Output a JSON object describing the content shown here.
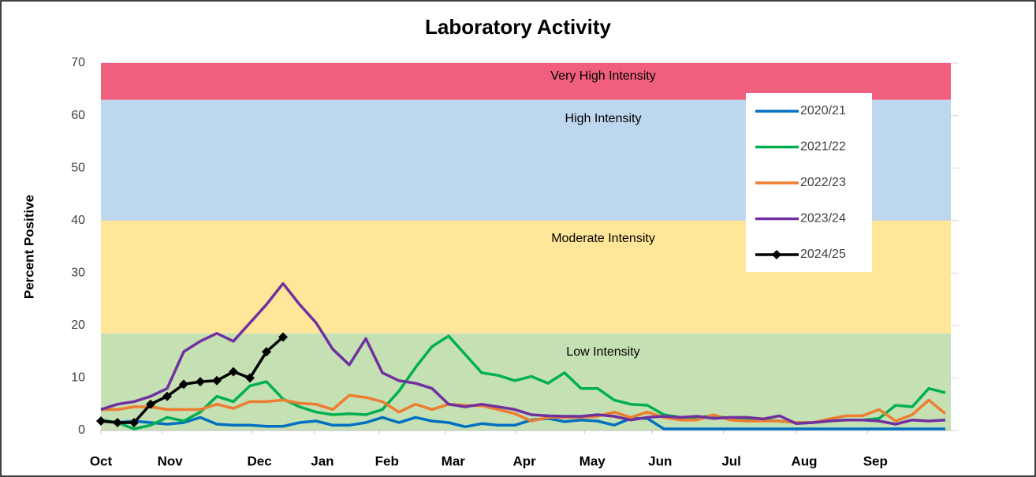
{
  "chart_data": {
    "type": "line",
    "title": "Laboratory Activity",
    "y_label": "Percent Positive",
    "xlim": [
      0,
      51
    ],
    "x": [
      0,
      1,
      2,
      3,
      4,
      5,
      6,
      7,
      8,
      9,
      10,
      11,
      12,
      13,
      14,
      15,
      16,
      17,
      18,
      19,
      20,
      21,
      22,
      23,
      24,
      25,
      26,
      27,
      28,
      29,
      30,
      31,
      32,
      33,
      34,
      35,
      36,
      37,
      38,
      39,
      40,
      41,
      42,
      43,
      44,
      45,
      46,
      47,
      48,
      49,
      50,
      51
    ],
    "xticks": [
      {
        "value": 0,
        "label": "Oct"
      },
      {
        "value": 3.7,
        "label": "Nov"
      },
      {
        "value": 9.1,
        "label": "Dec"
      },
      {
        "value": 12.9,
        "label": "Jan"
      },
      {
        "value": 16.8,
        "label": "Feb"
      },
      {
        "value": 20.8,
        "label": "Mar"
      },
      {
        "value": 25.1,
        "label": "Apr"
      },
      {
        "value": 29.2,
        "label": "May"
      },
      {
        "value": 33.3,
        "label": "Jun"
      },
      {
        "value": 37.6,
        "label": "Jul"
      },
      {
        "value": 42,
        "label": "Aug"
      },
      {
        "value": 46.3,
        "label": "Sep"
      }
    ],
    "ylim": [
      0,
      70
    ],
    "yticks": [
      0,
      10,
      20,
      30,
      40,
      50,
      60,
      70
    ],
    "grid": true,
    "bands": [
      {
        "label": "Low Intensity",
        "from": 0,
        "to": 18.5,
        "color": "#c5e0b3"
      },
      {
        "label": "Moderate Intensity",
        "from": 18.5,
        "to": 40,
        "color": "#ffe699"
      },
      {
        "label": "High Intensity",
        "from": 40,
        "to": 63,
        "color": "#bdd7ee"
      },
      {
        "label": "Very High Intensity",
        "from": 63,
        "to": 70,
        "color": "#f0607e"
      }
    ],
    "series": [
      {
        "name": "2020/21",
        "color": "#0070c0",
        "values": [
          2,
          1.5,
          1.8,
          1.5,
          1.2,
          1.5,
          2.5,
          1.2,
          1,
          1,
          0.8,
          0.8,
          1.5,
          1.8,
          1,
          1,
          1.5,
          2.5,
          1.5,
          2.5,
          1.8,
          1.5,
          0.7,
          1.3,
          1,
          1,
          2,
          2.3,
          1.7,
          2,
          1.8,
          1,
          2.3,
          2.3,
          0.3,
          0.3,
          0.3,
          0.3,
          0.3,
          0.3,
          0.3,
          0.3,
          0.3,
          0.3,
          0.3,
          0.3,
          0.3,
          0.3,
          0.3,
          0.3,
          0.3,
          0.3
        ]
      },
      {
        "name": "2021/22",
        "color": "#00b050",
        "values": [
          2,
          1.5,
          0.3,
          1,
          2.5,
          1.8,
          3.5,
          6.5,
          5.5,
          8.5,
          9.3,
          6,
          4.5,
          3.5,
          3,
          3.2,
          3,
          4,
          7.5,
          12,
          16,
          18,
          14.5,
          11,
          10.5,
          9.5,
          10.3,
          9,
          11,
          8,
          8,
          5.8,
          5,
          4.8,
          3,
          2.5,
          2.5,
          2.8,
          2.3,
          2,
          2,
          1.8,
          1.5,
          1.5,
          1.8,
          2,
          2,
          2.3,
          4.8,
          4.5,
          8,
          7.2
        ]
      },
      {
        "name": "2022/23",
        "color": "#ed7d31",
        "values": [
          4,
          4,
          4.5,
          4.5,
          4,
          4,
          4,
          5,
          4.2,
          5.5,
          5.5,
          5.8,
          5.2,
          5,
          4,
          6.7,
          6.3,
          5.5,
          3.5,
          5,
          4,
          5,
          4.8,
          4.7,
          4,
          3.2,
          1.8,
          2.5,
          2.5,
          2.5,
          2.7,
          3.5,
          2.5,
          3.5,
          2.5,
          2,
          2,
          3,
          2,
          1.8,
          1.8,
          1.8,
          1.5,
          1.5,
          2.2,
          2.8,
          2.8,
          4,
          1.8,
          3,
          5.8,
          3.2
        ]
      },
      {
        "name": "2023/24",
        "color": "#7030a0",
        "values": [
          4,
          5,
          5.5,
          6.5,
          8,
          15,
          17,
          18.5,
          17,
          20.5,
          24,
          28,
          24,
          20.5,
          15.5,
          12.5,
          17.5,
          11,
          9.5,
          9,
          8,
          5,
          4.5,
          5,
          4.5,
          4,
          3,
          2.8,
          2.7,
          2.7,
          3,
          2.7,
          2,
          2.5,
          2.7,
          2.5,
          2.7,
          2.3,
          2.5,
          2.5,
          2.2,
          2.8,
          1.3,
          1.5,
          1.8,
          2,
          2,
          1.8,
          1.2,
          2,
          1.8,
          2
        ]
      },
      {
        "name": "2024/25",
        "color": "#000000",
        "marker": "diamond",
        "values": [
          1.8,
          1.5,
          1.5,
          5,
          6.5,
          8.8,
          9.3,
          9.5,
          11.2,
          10,
          15,
          17.8,
          null,
          null,
          null,
          null,
          null,
          null,
          null,
          null,
          null,
          null,
          null,
          null,
          null,
          null,
          null,
          null,
          null,
          null,
          null,
          null,
          null,
          null,
          null,
          null,
          null,
          null,
          null,
          null,
          null,
          null,
          null,
          null,
          null,
          null,
          null,
          null,
          null,
          null,
          null,
          null
        ]
      }
    ]
  }
}
